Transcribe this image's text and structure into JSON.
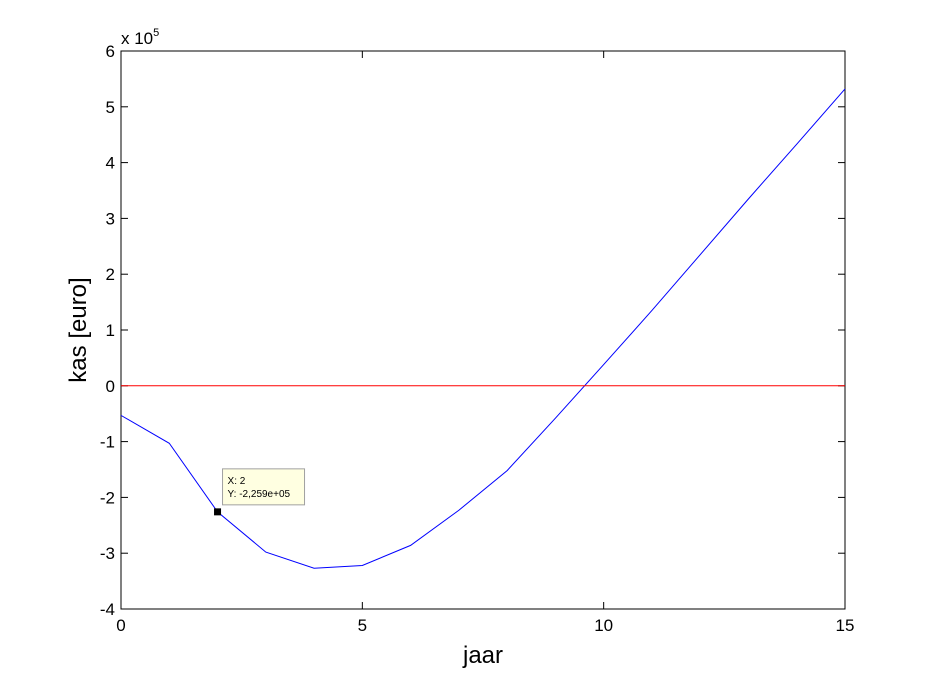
{
  "chart_data": {
    "type": "line",
    "title": "",
    "xlabel": "jaar",
    "ylabel": "kas [euro]",
    "xlim": [
      0,
      15
    ],
    "ylim": [
      -4,
      6
    ],
    "y_multiplier_label": {
      "base": "x 10",
      "exponent": "5"
    },
    "x_ticks": [
      0,
      5,
      10,
      15
    ],
    "y_ticks": [
      -4,
      -3,
      -2,
      -1,
      0,
      1,
      2,
      3,
      4,
      5,
      6
    ],
    "grid": false,
    "series": [
      {
        "color": "#0000ff",
        "x": [
          0,
          1,
          2,
          3,
          4,
          5,
          6,
          7,
          8,
          9,
          10,
          11,
          12,
          13,
          14,
          15
        ],
        "y": [
          -0.53,
          -1.03,
          -2.259,
          -2.98,
          -3.27,
          -3.22,
          -2.86,
          -2.23,
          -1.52,
          -0.58,
          0.38,
          1.35,
          2.35,
          3.35,
          4.33,
          5.32
        ]
      },
      {
        "color": "#ff0000",
        "x": [
          0,
          15
        ],
        "y": [
          0,
          0
        ]
      }
    ],
    "datatip": {
      "x": 2,
      "y": -2.259,
      "line1": "X: 2",
      "line2": "Y: -2,259e+05"
    }
  }
}
